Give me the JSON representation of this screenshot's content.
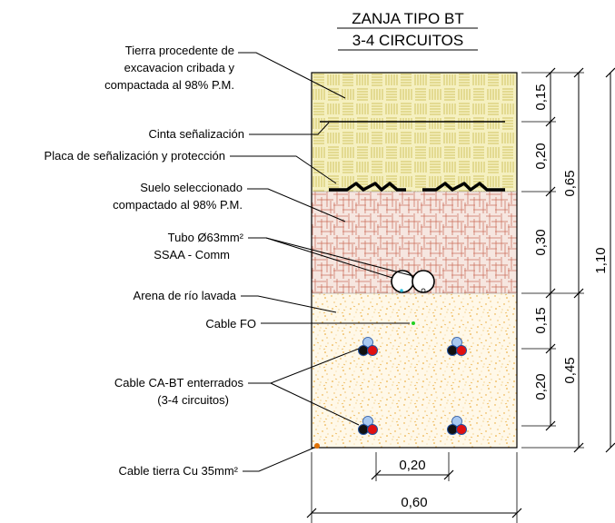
{
  "title": {
    "line1": "ZANJA TIPO BT",
    "line2": "3-4 CIRCUITOS"
  },
  "labels": {
    "tierra_1": "Tierra procedente de",
    "tierra_2": "excavacion cribada y",
    "tierra_3": "compactada al 98% P.M.",
    "cinta": "Cinta señalización",
    "placa": "Placa de señalización y protección",
    "suelo_1": "Suelo seleccionado",
    "suelo_2": "compactado al 98% P.M.",
    "tubo_1": "Tubo Ø63mm²",
    "tubo_2": "SSAA - Comm",
    "arena": "Arena de río lavada",
    "fo": "Cable FO",
    "cabt_1": "Cable CA-BT enterrados",
    "cabt_2": "(3-4 circuitos)",
    "tierra_cu": "Cable tierra Cu 35mm²"
  },
  "dimensions": {
    "d015_top": "0,15",
    "d020_top": "0,20",
    "d030": "0,30",
    "d015_bot": "0,15",
    "d020_bot": "0,20",
    "d065": "0,65",
    "d045": "0,45",
    "d110": "1,10",
    "d020_h": "0,20",
    "d060_h": "0,60"
  },
  "colors": {
    "tierra_fill": "#f5f0c0",
    "tierra_hatch": "#c8b84a",
    "suelo_fill": "#f6e6e0",
    "suelo_hatch": "#c96a55",
    "arena_fill": "#fff8e8",
    "arena_dots": "#e8a020",
    "cable_red": "#e01010",
    "cable_black": "#101010",
    "cable_blue": "#a8c8f0",
    "fo_green": "#20d020",
    "tierra_cu_orange": "#e07000"
  }
}
